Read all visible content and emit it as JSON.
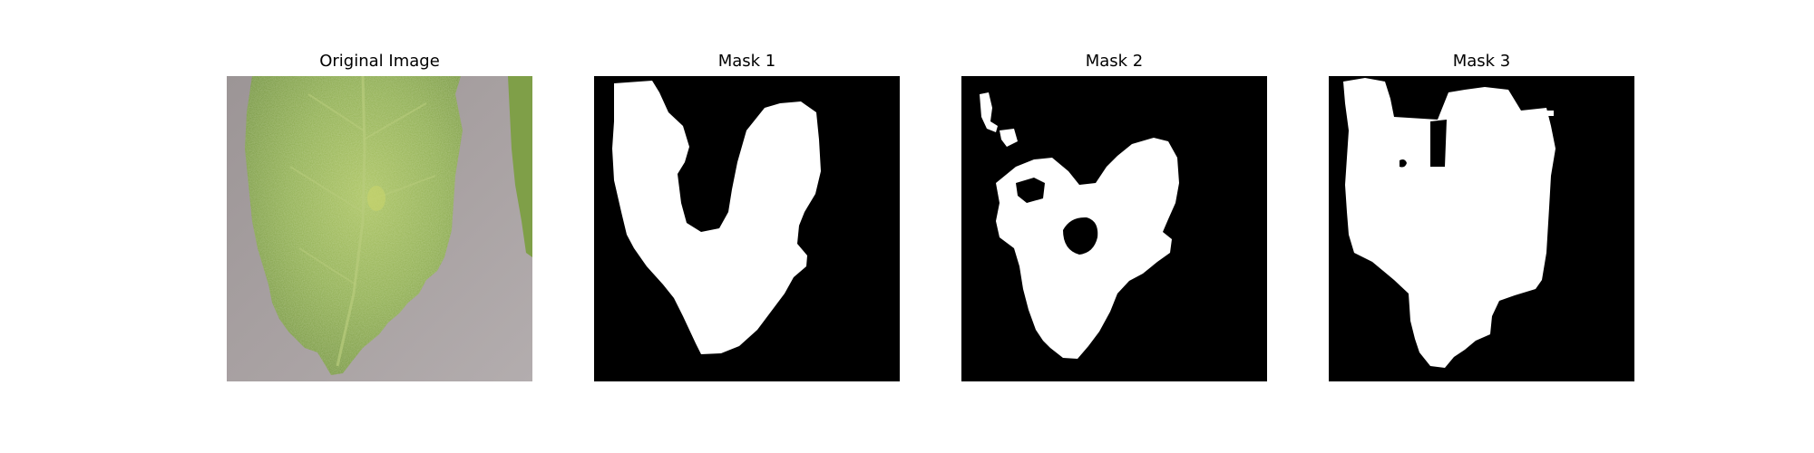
{
  "panels": [
    {
      "title": "Original Image"
    },
    {
      "title": "Mask 1"
    },
    {
      "title": "Mask 2"
    },
    {
      "title": "Mask 3"
    }
  ],
  "colors": {
    "background": "#ffffff",
    "mask_background": "#000000",
    "mask_foreground": "#ffffff",
    "leaf_green": "#8bab4e",
    "leaf_light": "#a6c05e",
    "backdrop_gray": "#a39e9e"
  }
}
